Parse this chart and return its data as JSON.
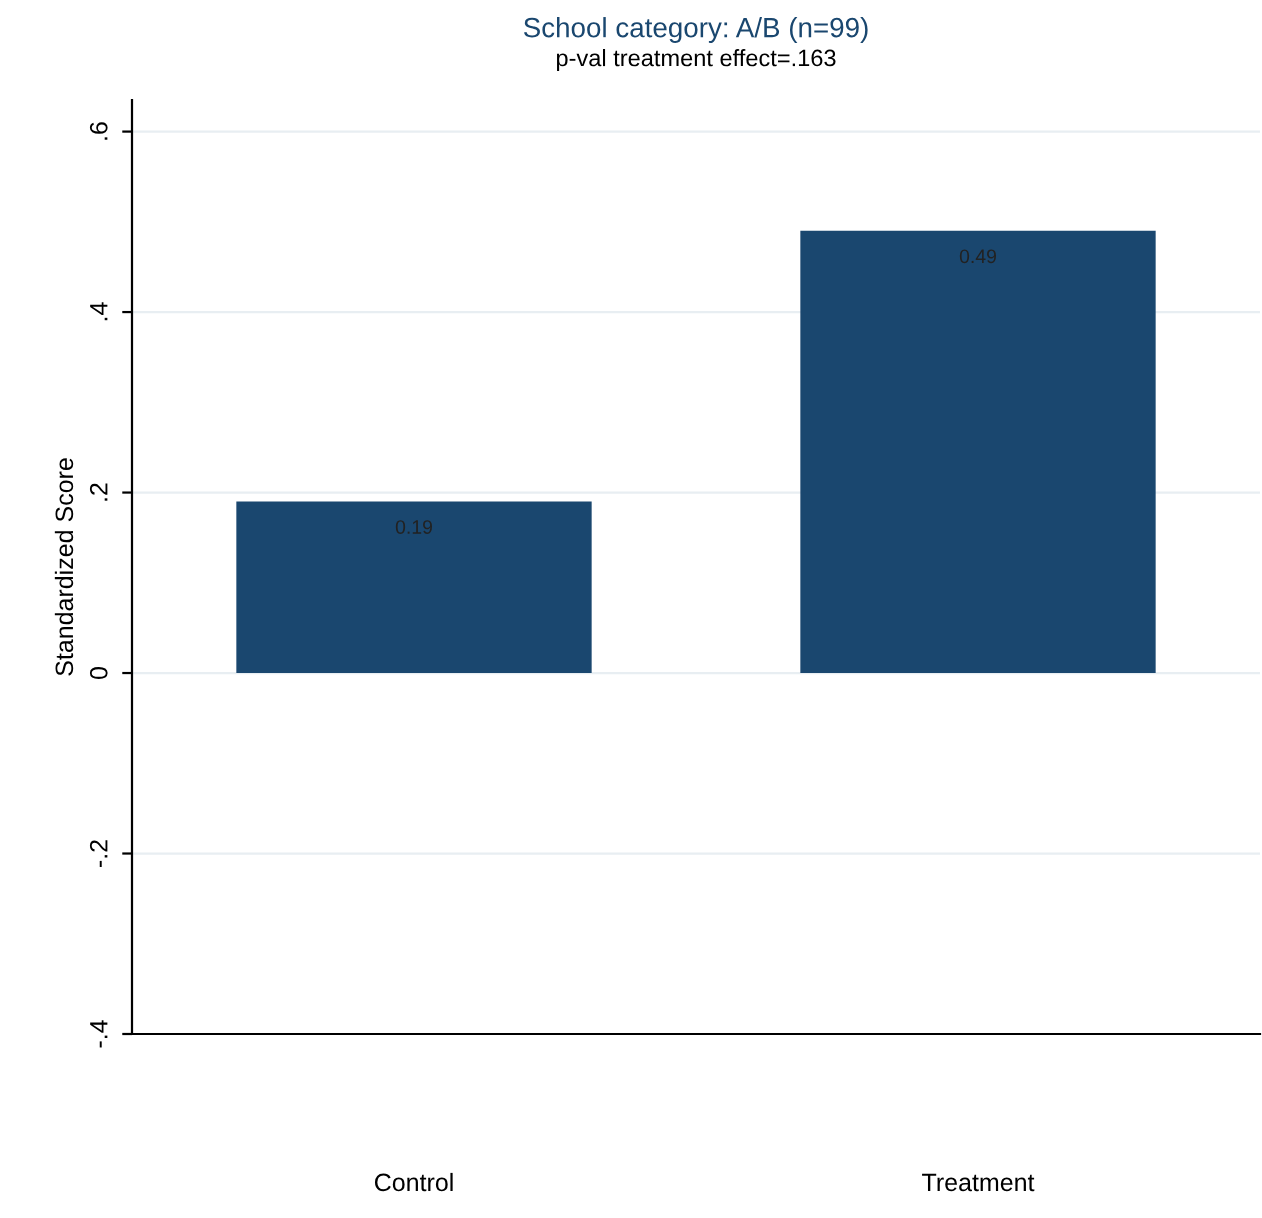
{
  "chart_data": {
    "type": "bar",
    "title": "School category: A/B (n=99)",
    "subtitle": "p-val treatment effect=.163",
    "ylabel": "Standardized Score",
    "categories": [
      "Control",
      "Treatment"
    ],
    "series": [
      {
        "color": "#1a476f",
        "values": [
          0.19,
          0.49
        ]
      }
    ],
    "ylim": [
      -0.4,
      0.635
    ],
    "yticks": [
      {
        "value": -0.4,
        "label": "-.4"
      },
      {
        "value": -0.2,
        "label": "-.2"
      },
      0,
      {
        "value": 0.2,
        "label": ".2"
      },
      {
        "value": 0.4,
        "label": ".4"
      },
      {
        "value": 0.6,
        "label": ".6"
      }
    ],
    "grid": "y",
    "data_labels": true
  }
}
